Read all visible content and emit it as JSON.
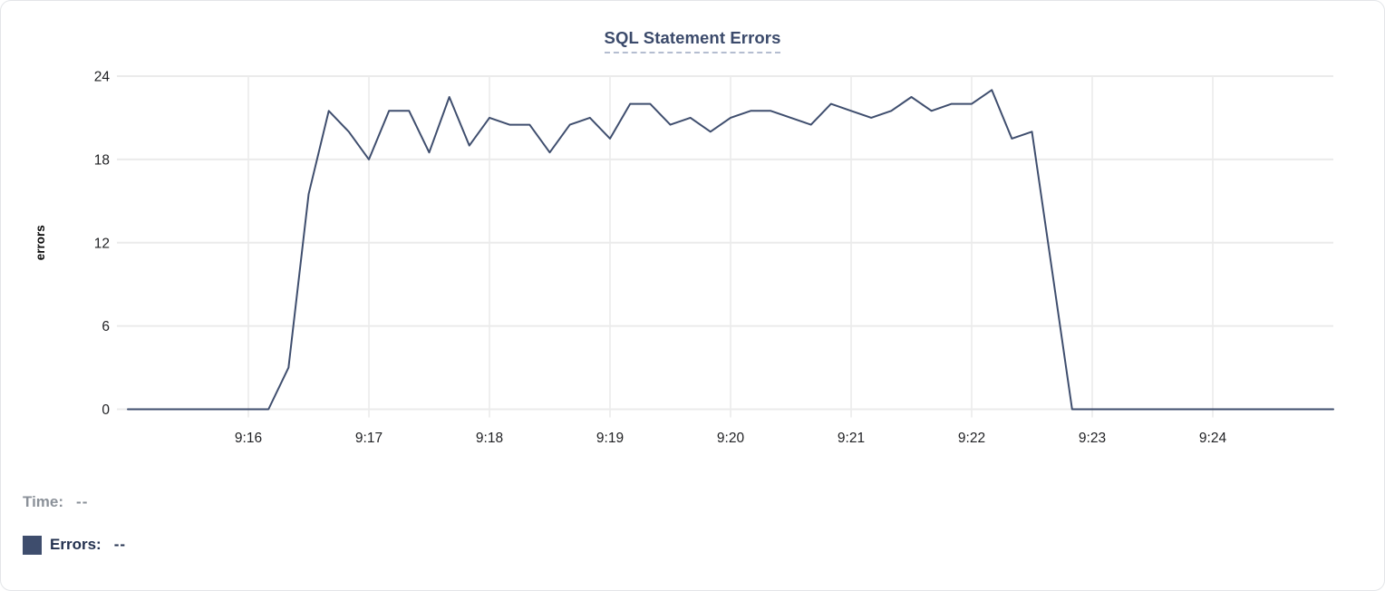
{
  "colors": {
    "card_border": "#e3e5e8",
    "background": "#ffffff",
    "title": "#3b4a6b",
    "title_underline": "#b4bdd0",
    "grid": "#ebebeb",
    "axis_text": "#1f2023",
    "series_line": "#3f4e6e",
    "legend_time": "#8b9199",
    "legend_errors": "#23314f",
    "legend_swatch": "#3e4d6d"
  },
  "legend": {
    "time_label": "Time:",
    "time_value": "--",
    "errors_label": "Errors:",
    "errors_value": "--"
  },
  "chart_data": {
    "type": "line",
    "title": "SQL Statement Errors",
    "xlabel": "",
    "ylabel": "errors",
    "series_name": "Errors",
    "ylim": [
      0,
      24
    ],
    "yticks": [
      0,
      6,
      12,
      18,
      24
    ],
    "grid": true,
    "legend_position": "bottom-left",
    "x": [
      "9:15:00",
      "9:15:10",
      "9:15:20",
      "9:15:30",
      "9:15:40",
      "9:15:50",
      "9:16:00",
      "9:16:10",
      "9:16:20",
      "9:16:30",
      "9:16:40",
      "9:16:50",
      "9:17:00",
      "9:17:10",
      "9:17:20",
      "9:17:30",
      "9:17:40",
      "9:17:50",
      "9:18:00",
      "9:18:10",
      "9:18:20",
      "9:18:30",
      "9:18:40",
      "9:18:50",
      "9:19:00",
      "9:19:10",
      "9:19:20",
      "9:19:30",
      "9:19:40",
      "9:19:50",
      "9:20:00",
      "9:20:10",
      "9:20:20",
      "9:20:30",
      "9:20:40",
      "9:20:50",
      "9:21:00",
      "9:21:10",
      "9:21:20",
      "9:21:30",
      "9:21:40",
      "9:21:50",
      "9:22:00",
      "9:22:10",
      "9:22:20",
      "9:22:30",
      "9:22:40",
      "9:22:50",
      "9:23:00",
      "9:23:10",
      "9:23:20",
      "9:23:30",
      "9:23:40",
      "9:23:50",
      "9:24:00",
      "9:24:10",
      "9:24:20",
      "9:24:30",
      "9:24:40",
      "9:24:50",
      "9:25:00"
    ],
    "values": [
      0,
      0,
      0,
      0,
      0,
      0,
      0,
      0,
      3,
      15.5,
      21.5,
      20,
      18,
      21.5,
      21.5,
      18.5,
      22.5,
      19,
      21,
      20.5,
      20.5,
      18.5,
      20.5,
      21,
      19.5,
      22,
      22,
      20.5,
      21,
      20,
      21,
      21.5,
      21.5,
      21,
      20.5,
      22,
      21.5,
      21,
      21.5,
      22.5,
      21.5,
      22,
      22,
      23,
      19.5,
      20,
      10,
      0,
      0,
      0,
      0,
      0,
      0,
      0,
      0,
      0,
      0,
      0,
      0,
      0,
      0
    ],
    "xticks": [
      {
        "label": "9:16",
        "index": 6
      },
      {
        "label": "9:17",
        "index": 12
      },
      {
        "label": "9:18",
        "index": 18
      },
      {
        "label": "9:19",
        "index": 24
      },
      {
        "label": "9:20",
        "index": 30
      },
      {
        "label": "9:21",
        "index": 36
      },
      {
        "label": "9:22",
        "index": 42
      },
      {
        "label": "9:23",
        "index": 48
      },
      {
        "label": "9:24",
        "index": 54
      }
    ]
  }
}
